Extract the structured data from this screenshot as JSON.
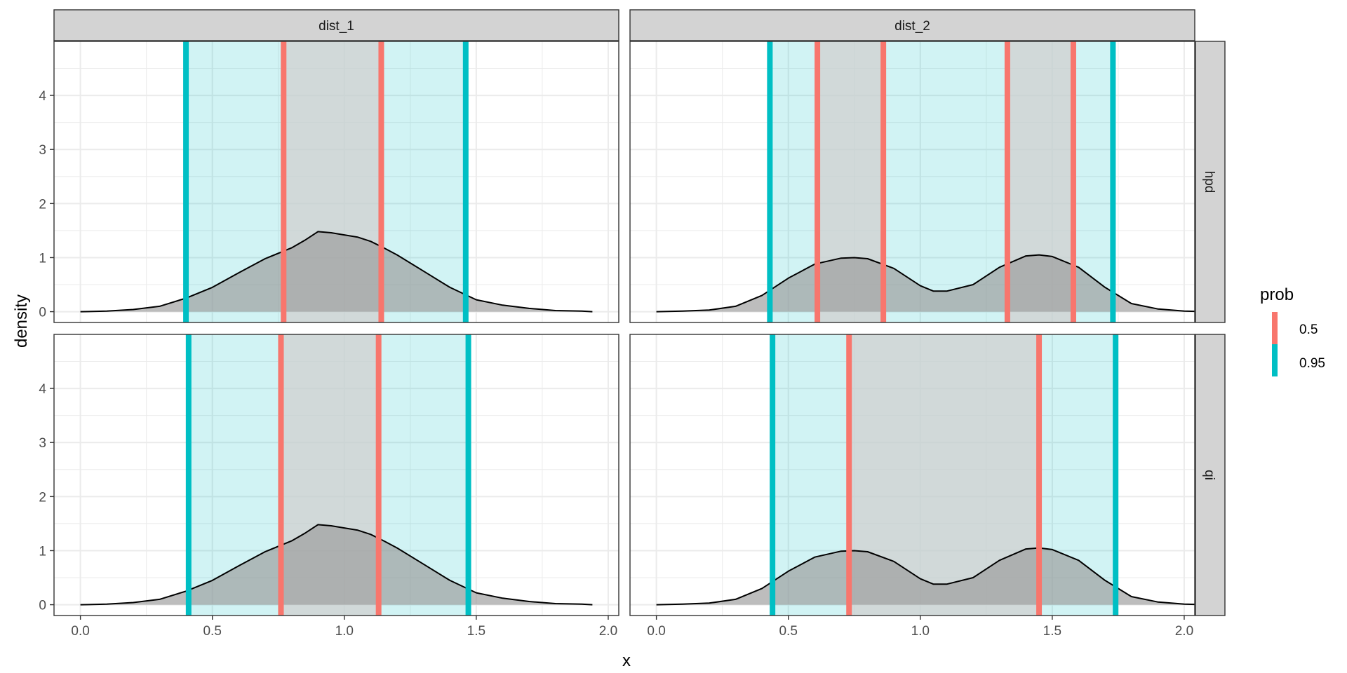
{
  "chart_data": {
    "type": "area",
    "title": "",
    "xlabel": "x",
    "ylabel": "density",
    "xlim": [
      -0.1,
      2.04
    ],
    "ylim": [
      -0.2,
      5.0
    ],
    "x_ticks": [
      0.0,
      0.5,
      1.0,
      1.5,
      2.0
    ],
    "x_tick_labels": [
      "0.0",
      "0.5",
      "1.0",
      "1.5",
      "2.0"
    ],
    "y_ticks": [
      0,
      1,
      2,
      3,
      4
    ],
    "y_tick_labels": [
      "0",
      "1",
      "2",
      "3",
      "4"
    ],
    "grid": true,
    "legend": {
      "title": "prob",
      "placement": "right",
      "entries": [
        {
          "label": "0.5",
          "color": "#F8766D"
        },
        {
          "label": "0.95",
          "color": "#00BFC4"
        }
      ]
    },
    "col_facets": [
      "dist_1",
      "dist_2"
    ],
    "row_facets": [
      "hpd",
      "qi"
    ],
    "colors": {
      "p50": "#F8766D",
      "p95": "#00BFC4",
      "density_fill": "#999999",
      "density_line": "#000000",
      "strip_bg": "#D3D3D3",
      "grid": "#EBEBEB"
    },
    "panels": [
      {
        "col": "dist_1",
        "row": "hpd",
        "density_x": [
          0.0,
          0.1,
          0.2,
          0.3,
          0.4,
          0.5,
          0.6,
          0.7,
          0.8,
          0.85,
          0.9,
          0.95,
          1.0,
          1.05,
          1.1,
          1.15,
          1.2,
          1.3,
          1.4,
          1.5,
          1.6,
          1.7,
          1.8,
          1.9,
          1.94
        ],
        "density_y": [
          0.0,
          0.01,
          0.04,
          0.1,
          0.25,
          0.45,
          0.72,
          0.98,
          1.18,
          1.32,
          1.48,
          1.46,
          1.42,
          1.38,
          1.3,
          1.18,
          1.05,
          0.75,
          0.45,
          0.22,
          0.12,
          0.06,
          0.02,
          0.01,
          0.0
        ],
        "intervals": [
          {
            "prob": 0.95,
            "lower": 0.4,
            "upper": 1.46
          },
          {
            "prob": 0.5,
            "lower": 0.77,
            "upper": 1.14
          }
        ]
      },
      {
        "col": "dist_2",
        "row": "hpd",
        "density_x": [
          0.0,
          0.1,
          0.2,
          0.3,
          0.4,
          0.5,
          0.6,
          0.7,
          0.75,
          0.8,
          0.9,
          1.0,
          1.05,
          1.1,
          1.2,
          1.3,
          1.4,
          1.45,
          1.5,
          1.6,
          1.7,
          1.8,
          1.9,
          2.0,
          2.09
        ],
        "density_y": [
          0.0,
          0.01,
          0.03,
          0.1,
          0.3,
          0.62,
          0.88,
          0.99,
          1.0,
          0.98,
          0.8,
          0.48,
          0.38,
          0.38,
          0.5,
          0.82,
          1.03,
          1.05,
          1.02,
          0.82,
          0.45,
          0.15,
          0.05,
          0.01,
          0.0
        ],
        "intervals": [
          {
            "prob": 0.95,
            "lower": 0.43,
            "upper": 1.73
          },
          {
            "prob": 0.5,
            "lower": 0.61,
            "upper": 0.86
          },
          {
            "prob": 0.5,
            "lower": 1.33,
            "upper": 1.58
          }
        ]
      },
      {
        "col": "dist_1",
        "row": "qi",
        "density_x": [
          0.0,
          0.1,
          0.2,
          0.3,
          0.4,
          0.5,
          0.6,
          0.7,
          0.8,
          0.85,
          0.9,
          0.95,
          1.0,
          1.05,
          1.1,
          1.15,
          1.2,
          1.3,
          1.4,
          1.5,
          1.6,
          1.7,
          1.8,
          1.9,
          1.94
        ],
        "density_y": [
          0.0,
          0.01,
          0.04,
          0.1,
          0.25,
          0.45,
          0.72,
          0.98,
          1.18,
          1.32,
          1.48,
          1.46,
          1.42,
          1.38,
          1.3,
          1.18,
          1.05,
          0.75,
          0.45,
          0.22,
          0.12,
          0.06,
          0.02,
          0.01,
          0.0
        ],
        "intervals": [
          {
            "prob": 0.95,
            "lower": 0.41,
            "upper": 1.47
          },
          {
            "prob": 0.5,
            "lower": 0.76,
            "upper": 1.13
          }
        ]
      },
      {
        "col": "dist_2",
        "row": "qi",
        "density_x": [
          0.0,
          0.1,
          0.2,
          0.3,
          0.4,
          0.5,
          0.6,
          0.7,
          0.75,
          0.8,
          0.9,
          1.0,
          1.05,
          1.1,
          1.2,
          1.3,
          1.4,
          1.45,
          1.5,
          1.6,
          1.7,
          1.8,
          1.9,
          2.0,
          2.09
        ],
        "density_y": [
          0.0,
          0.01,
          0.03,
          0.1,
          0.3,
          0.62,
          0.88,
          0.99,
          1.0,
          0.98,
          0.8,
          0.48,
          0.38,
          0.38,
          0.5,
          0.82,
          1.03,
          1.05,
          1.02,
          0.82,
          0.45,
          0.15,
          0.05,
          0.01,
          0.0
        ],
        "intervals": [
          {
            "prob": 0.95,
            "lower": 0.44,
            "upper": 1.74
          },
          {
            "prob": 0.5,
            "lower": 0.73,
            "upper": 1.45
          }
        ]
      }
    ]
  }
}
